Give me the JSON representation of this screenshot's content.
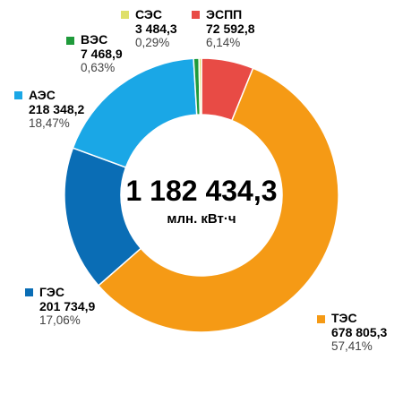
{
  "chart_data": {
    "type": "pie",
    "subtype": "donut",
    "total_label": "1 182 434,3",
    "unit_label": "млн. кВт·ч",
    "slices": [
      {
        "name": "ЭСПП",
        "value_label": "72 592,8",
        "percent_label": "6,14%",
        "value": 72592.8,
        "percent": 6.14,
        "color": "#e84b45"
      },
      {
        "name": "ТЭС",
        "value_label": "678 805,3",
        "percent_label": "57,41%",
        "value": 678805.3,
        "percent": 57.41,
        "color": "#f59a15"
      },
      {
        "name": "ГЭС",
        "value_label": "201 734,9",
        "percent_label": "17,06%",
        "value": 201734.9,
        "percent": 17.06,
        "color": "#0a6db5"
      },
      {
        "name": "АЭС",
        "value_label": "218 348,2",
        "percent_label": "18,47%",
        "value": 218348.2,
        "percent": 18.47,
        "color": "#1aa7e6"
      },
      {
        "name": "ВЭС",
        "value_label": "7 468,9",
        "percent_label": "0,63%",
        "value": 7468.9,
        "percent": 0.63,
        "color": "#1f9a3b"
      },
      {
        "name": "СЭС",
        "value_label": "3 484,3",
        "percent_label": "0,29%",
        "value": 3484.3,
        "percent": 0.29,
        "color": "#dfe06a"
      }
    ]
  }
}
